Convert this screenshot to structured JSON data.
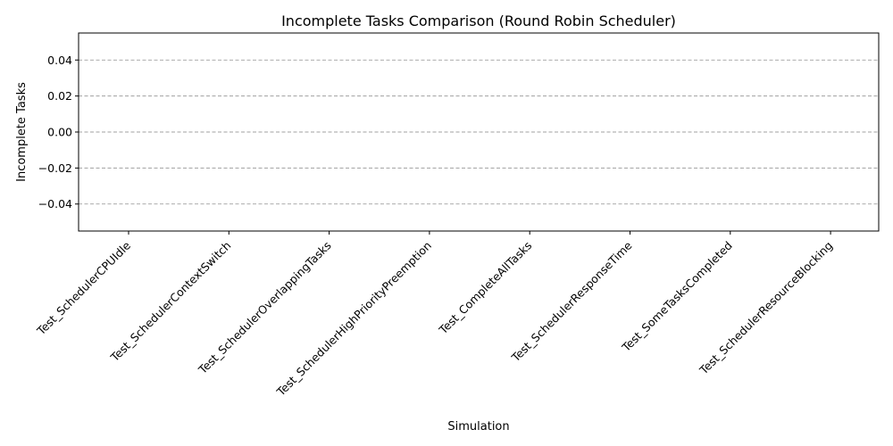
{
  "chart_data": {
    "type": "bar",
    "title": "Incomplete Tasks Comparison (Round Robin Scheduler)",
    "xlabel": "Simulation",
    "ylabel": "Incomplete Tasks",
    "categories": [
      "Test_SchedulerCPUIdle",
      "Test_SchedulerContextSwitch",
      "Test_SchedulerOverlappingTasks",
      "Test_SchedulerHighPriorityPreemption",
      "Test_CompleteAllTasks",
      "Test_SchedulerResponseTime",
      "Test_SomeTasksCompleted",
      "Test_SchedulerResourceBlocking"
    ],
    "values": [
      0,
      0,
      0,
      0,
      0,
      0,
      0,
      0
    ],
    "ylim": [
      -0.055,
      0.055
    ],
    "yticks": [
      -0.04,
      -0.02,
      0.0,
      0.02,
      0.04
    ],
    "ytick_labels": [
      "−0.04",
      "−0.02",
      "0.00",
      "0.02",
      "0.04"
    ],
    "grid": "y-dashed",
    "bar_color": "#1f77b4"
  }
}
